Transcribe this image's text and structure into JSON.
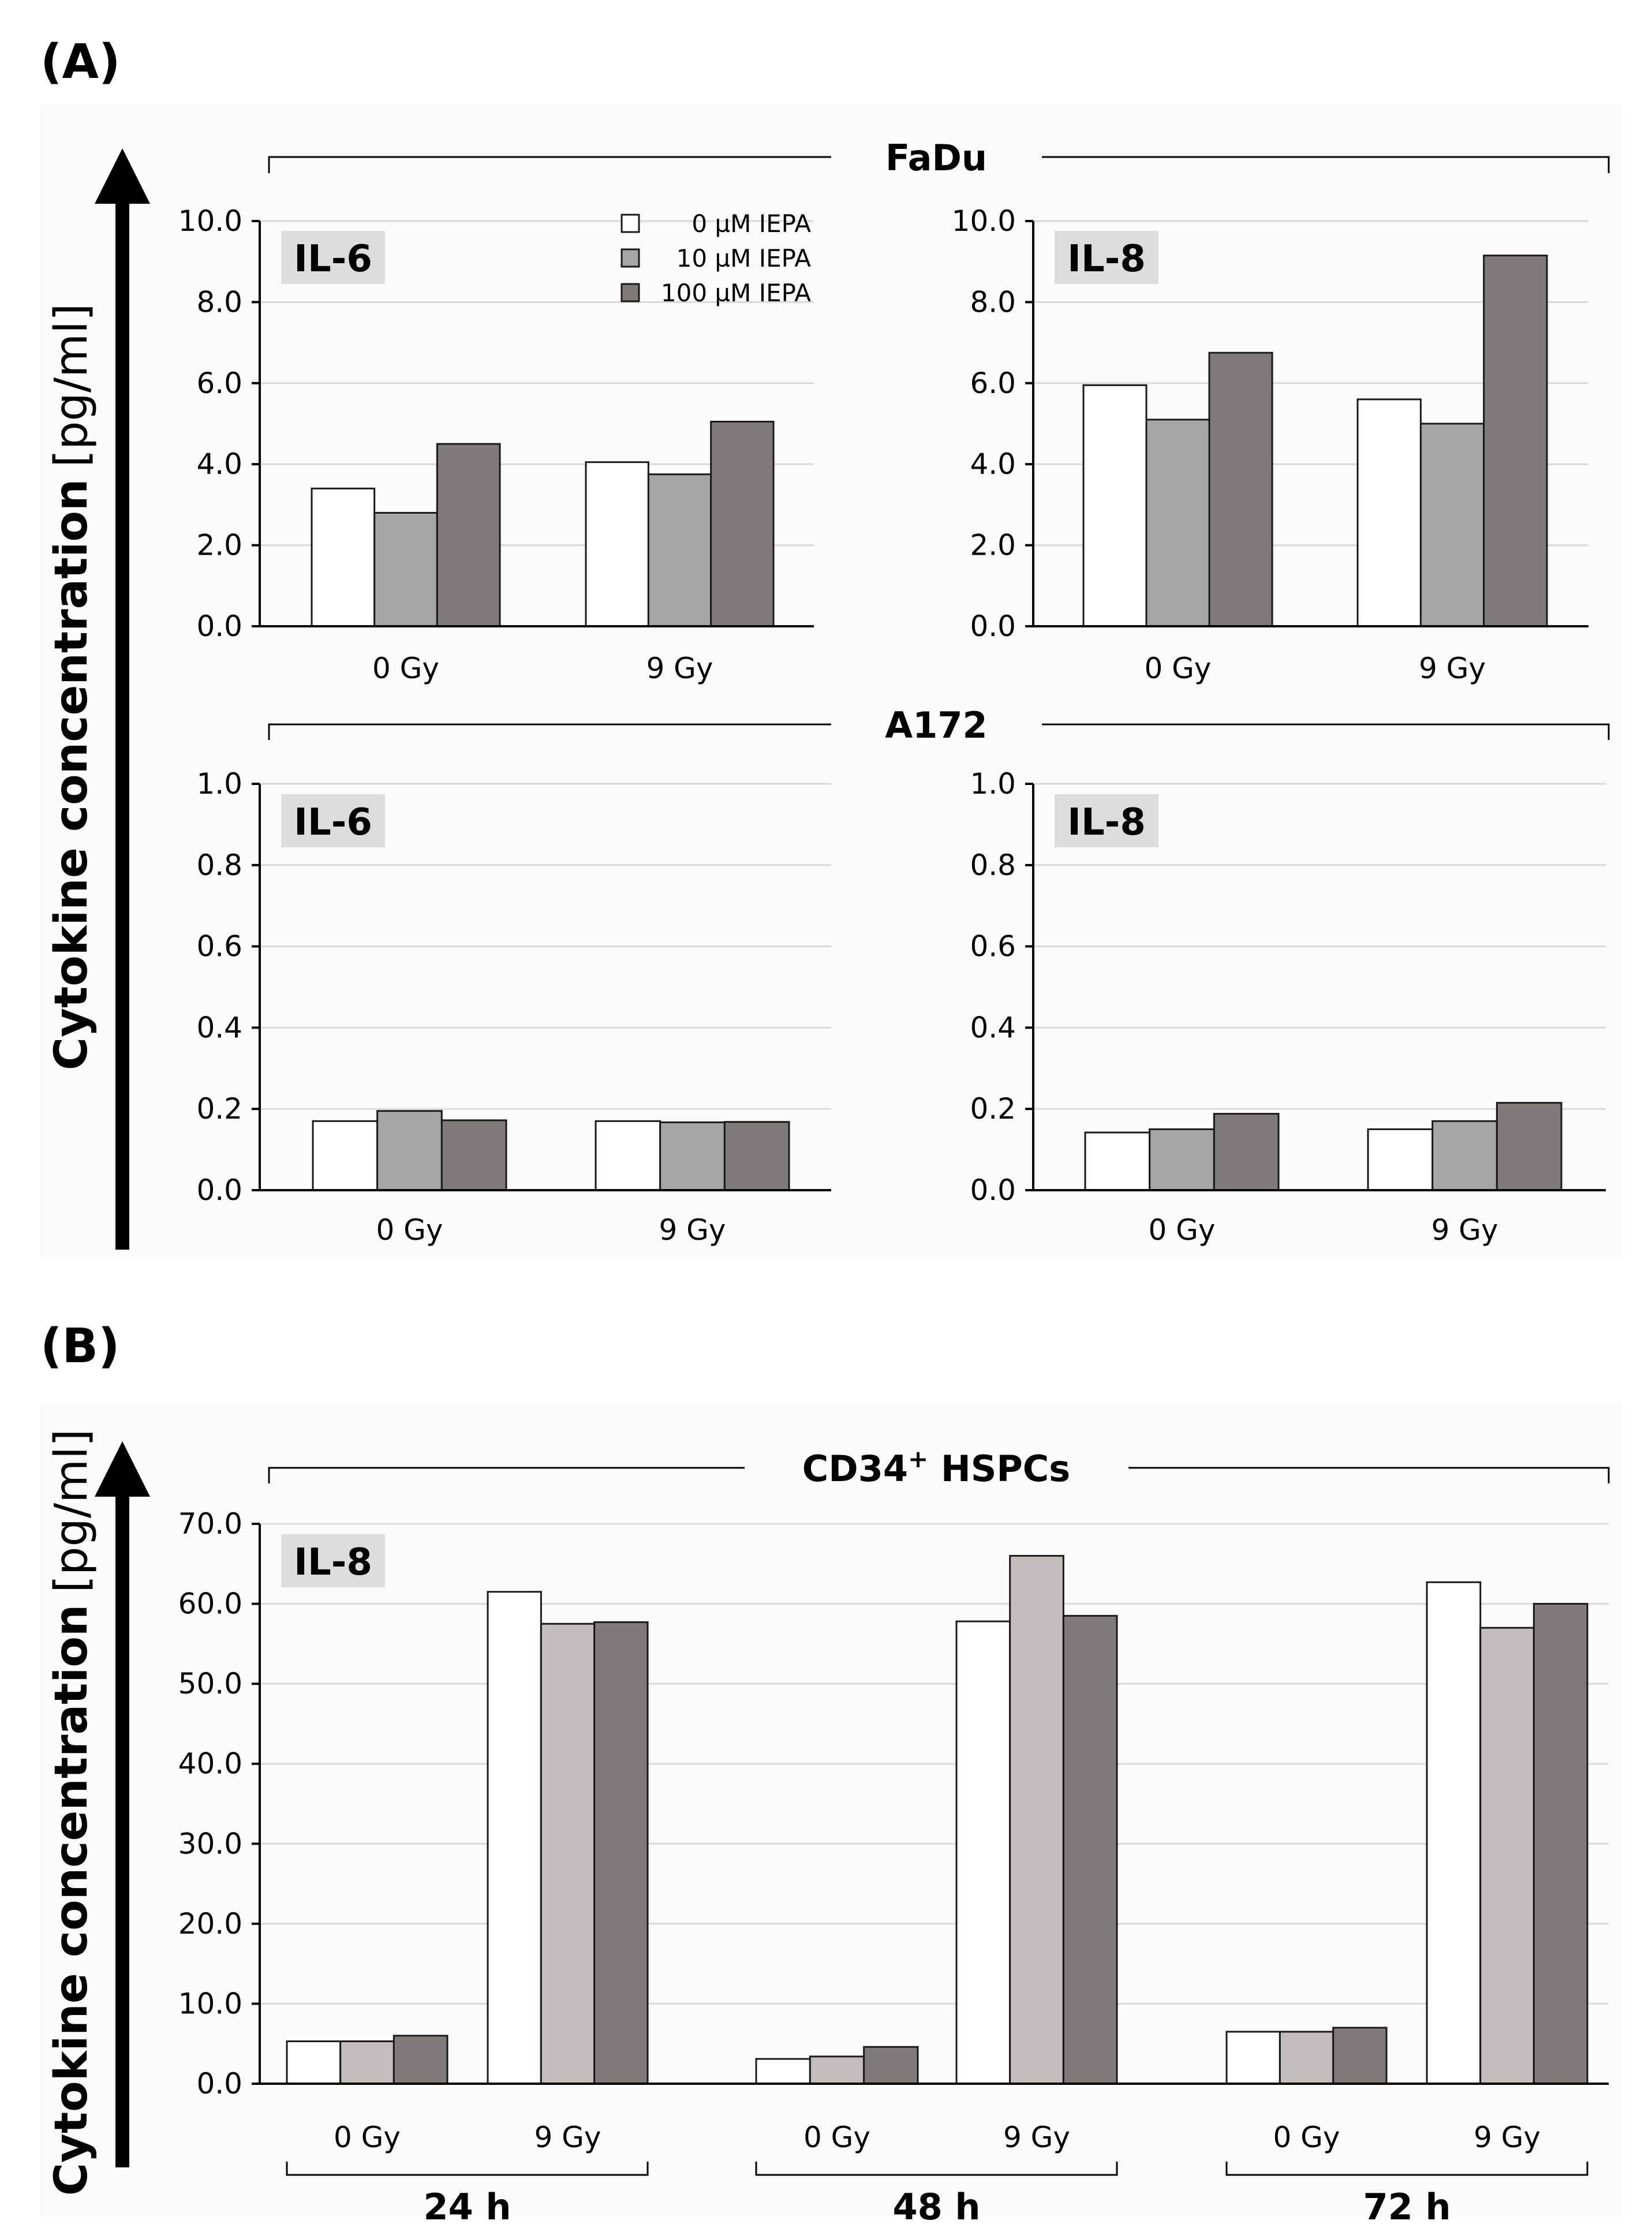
{
  "panel_labels": {
    "a": "(A)",
    "b": "(B)"
  },
  "y_axis_label_bold": "Cytokine concentration",
  "y_axis_label_unit": "[pg/ml]",
  "cell_lines": {
    "fadu": "FaDu",
    "a172": "A172",
    "hspc_main": "CD34",
    "hspc_sup": "+",
    "hspc_rest": " HSPCs"
  },
  "legend": [
    {
      "label": "0 µM IEPA",
      "color": "#ffffff"
    },
    {
      "label": "10 µM IEPA",
      "color": "#a6a6a6"
    },
    {
      "label": "100 µM IEPA",
      "color": "#7f7b7b"
    }
  ],
  "chart_data": [
    {
      "id": "fadu-il6",
      "type": "bar",
      "title": "IL-6",
      "cell_line": "FaDu",
      "categories": [
        "0 Gy",
        "9 Gy"
      ],
      "ylim": [
        0,
        10
      ],
      "yticks": [
        0,
        2,
        4,
        6,
        8,
        10
      ],
      "tick_decimals": 1,
      "series": [
        {
          "name": "0 µM IEPA",
          "values": [
            3.4,
            4.05
          ],
          "color": "#ffffff"
        },
        {
          "name": "10 µM IEPA",
          "values": [
            2.8,
            3.75
          ],
          "color": "#a6a6a6"
        },
        {
          "name": "100 µM IEPA",
          "values": [
            4.5,
            5.05
          ],
          "color": "#7f7b7b"
        }
      ]
    },
    {
      "id": "fadu-il8",
      "type": "bar",
      "title": "IL-8",
      "cell_line": "FaDu",
      "categories": [
        "0 Gy",
        "9 Gy"
      ],
      "ylim": [
        0,
        10
      ],
      "yticks": [
        0,
        2,
        4,
        6,
        8,
        10
      ],
      "tick_decimals": 1,
      "series": [
        {
          "name": "0 µM IEPA",
          "values": [
            5.95,
            5.6
          ],
          "color": "#ffffff"
        },
        {
          "name": "10 µM IEPA",
          "values": [
            5.1,
            5.0
          ],
          "color": "#a6a6a6"
        },
        {
          "name": "100 µM IEPA",
          "values": [
            6.75,
            9.15
          ],
          "color": "#7f7b7b"
        }
      ]
    },
    {
      "id": "a172-il6",
      "type": "bar",
      "title": "IL-6",
      "cell_line": "A172",
      "categories": [
        "0 Gy",
        "9 Gy"
      ],
      "ylim": [
        0,
        1
      ],
      "yticks": [
        0,
        0.2,
        0.4,
        0.6,
        0.8,
        1.0
      ],
      "tick_decimals": 1,
      "series": [
        {
          "name": "0 µM IEPA",
          "values": [
            0.17,
            0.17
          ],
          "color": "#ffffff"
        },
        {
          "name": "10 µM IEPA",
          "values": [
            0.195,
            0.167
          ],
          "color": "#a6a6a6"
        },
        {
          "name": "100 µM IEPA",
          "values": [
            0.172,
            0.168
          ],
          "color": "#7f7b7b"
        }
      ]
    },
    {
      "id": "a172-il8",
      "type": "bar",
      "title": "IL-8",
      "cell_line": "A172",
      "categories": [
        "0 Gy",
        "9 Gy"
      ],
      "ylim": [
        0,
        1
      ],
      "yticks": [
        0,
        0.2,
        0.4,
        0.6,
        0.8,
        1.0
      ],
      "tick_decimals": 1,
      "series": [
        {
          "name": "0 µM IEPA",
          "values": [
            0.142,
            0.15
          ],
          "color": "#ffffff"
        },
        {
          "name": "10 µM IEPA",
          "values": [
            0.15,
            0.17
          ],
          "color": "#a6a6a6"
        },
        {
          "name": "100 µM IEPA",
          "values": [
            0.188,
            0.215
          ],
          "color": "#7f7b7b"
        }
      ]
    },
    {
      "id": "hspc-il8",
      "type": "bar",
      "title": "IL-8",
      "cell_line": "CD34+ HSPCs",
      "categories": [
        "0 Gy",
        "9 Gy",
        "0 Gy",
        "9 Gy",
        "0 Gy",
        "9 Gy"
      ],
      "time_groups": [
        "24 h",
        "48 h",
        "72 h"
      ],
      "ylim": [
        0,
        70
      ],
      "yticks": [
        0,
        10,
        20,
        30,
        40,
        50,
        60,
        70
      ],
      "tick_decimals": 1,
      "series": [
        {
          "name": "0 µM IEPA",
          "values": [
            5.3,
            61.5,
            3.1,
            57.8,
            6.5,
            62.7
          ],
          "color": "#ffffff"
        },
        {
          "name": "10 µM IEPA",
          "values": [
            5.3,
            57.5,
            3.4,
            66.0,
            6.5,
            57.0
          ],
          "color": "#c2bcbc"
        },
        {
          "name": "100 µM IEPA",
          "values": [
            6.0,
            57.7,
            4.6,
            58.5,
            7.0,
            60.0
          ],
          "color": "#7f7b7b"
        }
      ]
    }
  ]
}
